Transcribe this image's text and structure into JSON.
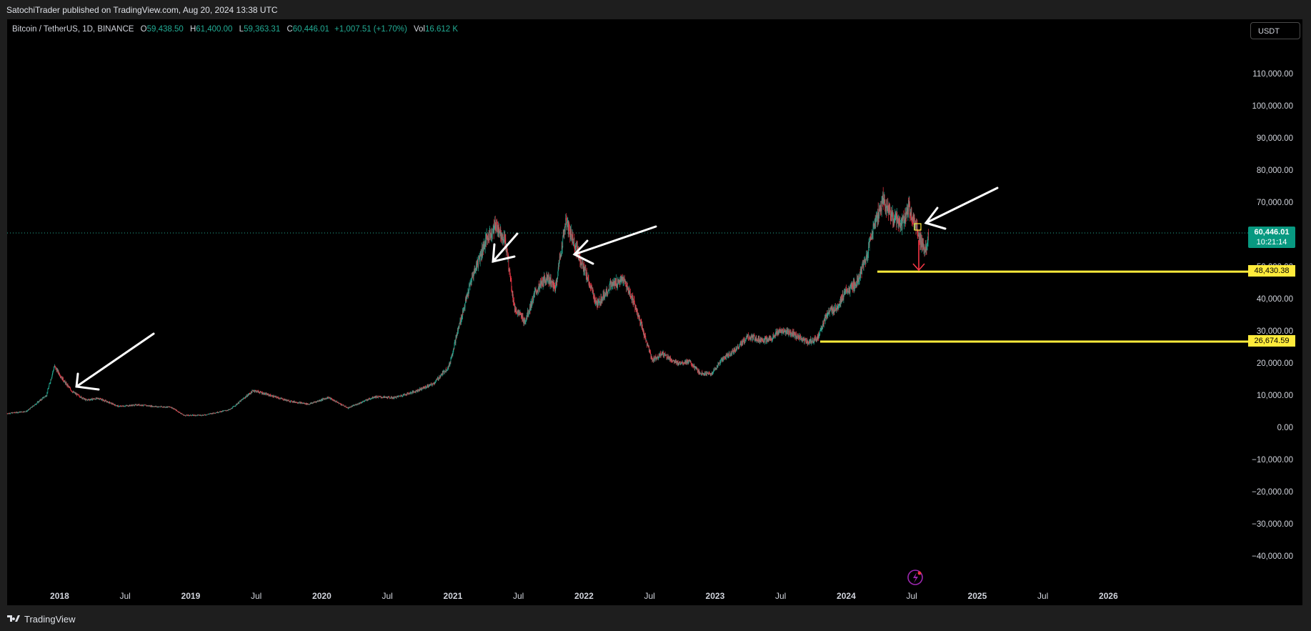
{
  "header": {
    "published": "SatochiTrader published on TradingView.com, Aug 20, 2024 13:38 UTC"
  },
  "legend": {
    "symbol": "Bitcoin / TetherUS, 1D, BINANCE",
    "o_label": "O",
    "o_value": "59,438.50",
    "h_label": "H",
    "h_value": "61,400.00",
    "l_label": "L",
    "l_value": "59,363.31",
    "c_label": "C",
    "c_value": "60,446.01",
    "change": "+1,007.51 (+1.70%)",
    "vol_label": "Vol",
    "vol_value": "16.612 K"
  },
  "currency_button": "USDT",
  "price_tags": {
    "last_price": "60,446.01",
    "countdown": "10:21:14",
    "level_1": "48,430.38",
    "level_2": "26,674.59"
  },
  "footer": {
    "brand": "TradingView",
    "logo_icon": "tradingview-logo-icon"
  },
  "colors": {
    "up": "#22ab94",
    "down": "#f23645",
    "level": "#ffeb3b",
    "annotation": "#ffffff",
    "last_price_bg": "#089981"
  },
  "chart_data": {
    "type": "line",
    "symbol": "BTCUSDT",
    "timeframe": "1D",
    "y_ticks": [
      110000,
      100000,
      90000,
      80000,
      70000,
      60000,
      50000,
      40000,
      30000,
      20000,
      10000,
      0,
      -10000,
      -20000,
      -30000,
      -40000
    ],
    "y_tick_labels": [
      "110,000.00",
      "100,000.00",
      "90,000.00",
      "80,000.00",
      "70,000.00",
      "60,000.00",
      "50,000.00",
      "40,000.00",
      "30,000.00",
      "20,000.00",
      "10,000.00",
      "0.00",
      "−10,000.00",
      "−20,000.00",
      "−30,000.00",
      "−40,000.00"
    ],
    "x_ticks": [
      "2018",
      "Jul",
      "2019",
      "Jul",
      "2020",
      "Jul",
      "2021",
      "Jul",
      "2022",
      "Jul",
      "2023",
      "Jul",
      "2024",
      "Jul",
      "2025",
      "Jul",
      "2026"
    ],
    "x_tick_times": [
      2018.0,
      2018.5,
      2019.0,
      2019.5,
      2020.0,
      2020.5,
      2021.0,
      2021.5,
      2022.0,
      2022.5,
      2023.0,
      2023.5,
      2024.0,
      2024.5,
      2025.0,
      2025.5,
      2026.0
    ],
    "series": [
      {
        "x": [
          2017.6,
          2017.75,
          2017.9,
          2017.96,
          2018.04,
          2018.1,
          2018.2,
          2018.3,
          2018.45,
          2018.6,
          2018.75,
          2018.85,
          2018.95,
          2019.1,
          2019.3,
          2019.48,
          2019.6,
          2019.75,
          2019.9,
          2020.05,
          2020.2,
          2020.4,
          2020.55,
          2020.7,
          2020.85,
          2020.97,
          2021.05,
          2021.15,
          2021.25,
          2021.33,
          2021.4,
          2021.47,
          2021.55,
          2021.63,
          2021.72,
          2021.78,
          2021.86,
          2021.93,
          2022.02,
          2022.1,
          2022.2,
          2022.3,
          2022.38,
          2022.45,
          2022.52,
          2022.6,
          2022.7,
          2022.8,
          2022.88,
          2022.97,
          2023.05,
          2023.15,
          2023.25,
          2023.4,
          2023.5,
          2023.6,
          2023.7,
          2023.78,
          2023.85,
          2023.92,
          2024.0,
          2024.08,
          2024.15,
          2024.2,
          2024.28,
          2024.35,
          2024.42,
          2024.48,
          2024.52,
          2024.57,
          2024.6,
          2024.63
        ],
        "y": [
          4300,
          5000,
          10000,
          19000,
          14000,
          11000,
          8500,
          9000,
          6500,
          7000,
          6400,
          6300,
          3700,
          3800,
          5500,
          11500,
          10000,
          8200,
          7200,
          9300,
          6000,
          9500,
          9200,
          11000,
          13500,
          19000,
          32000,
          47000,
          58000,
          63000,
          58000,
          37000,
          33000,
          42000,
          47000,
          43000,
          64000,
          57000,
          47000,
          38000,
          44000,
          46000,
          39000,
          30000,
          21000,
          23000,
          20000,
          20500,
          17000,
          16500,
          21000,
          24000,
          28000,
          27000,
          30000,
          29000,
          26500,
          27500,
          35000,
          37000,
          42000,
          45000,
          52000,
          61000,
          71000,
          66000,
          63000,
          68000,
          64000,
          58000,
          54000,
          60446
        ]
      }
    ],
    "levels": [
      48430.38,
      26674.59
    ],
    "last_price": 60446.01
  }
}
